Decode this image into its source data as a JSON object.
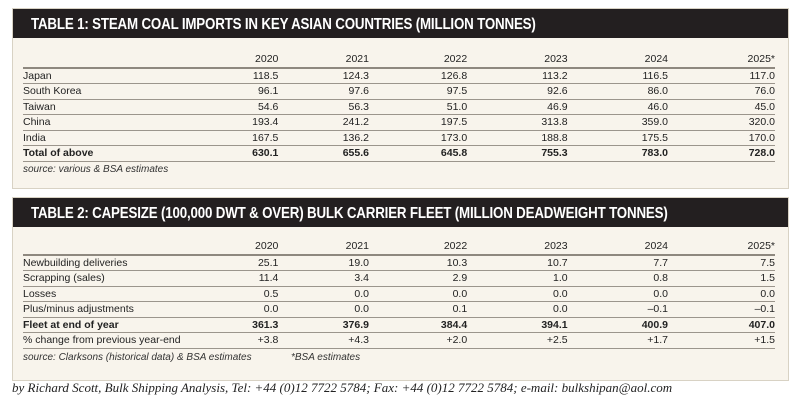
{
  "table1": {
    "title": "TABLE 1: STEAM COAL IMPORTS IN KEY ASIAN COUNTRIES (MILLION TONNES)",
    "columns": [
      "",
      "2020",
      "2021",
      "2022",
      "2023",
      "2024",
      "2025*"
    ],
    "rows": [
      [
        "Japan",
        "118.5",
        "124.3",
        "126.8",
        "113.2",
        "116.5",
        "117.0"
      ],
      [
        "South Korea",
        "96.1",
        "97.6",
        "97.5",
        "92.6",
        "86.0",
        "76.0"
      ],
      [
        "Taiwan",
        "54.6",
        "56.3",
        "51.0",
        "46.9",
        "46.0",
        "45.0"
      ],
      [
        "China",
        "193.4",
        "241.2",
        "197.5",
        "313.8",
        "359.0",
        "320.0"
      ],
      [
        "India",
        "167.5",
        "136.2",
        "173.0",
        "188.8",
        "175.5",
        "170.0"
      ],
      [
        "Total of above",
        "630.1",
        "655.6",
        "645.8",
        "755.3",
        "783.0",
        "728.0"
      ]
    ],
    "source": "source: various & BSA estimates"
  },
  "table2": {
    "title": "TABLE 2: CAPESIZE  (100,000 DWT & OVER) BULK CARRIER FLEET (MILLION DEADWEIGHT TONNES)",
    "columns": [
      "",
      "2020",
      "2021",
      "2022",
      "2023",
      "2024",
      "2025*"
    ],
    "rows": [
      [
        "Newbuilding deliveries",
        "25.1",
        "19.0",
        "10.3",
        "10.7",
        "7.7",
        "7.5"
      ],
      [
        "Scrapping (sales)",
        "11.4",
        "3.4",
        "2.9",
        "1.0",
        "0.8",
        "1.5"
      ],
      [
        "Losses",
        "0.5",
        "0.0",
        "0.0",
        "0.0",
        "0.0",
        "0.0"
      ],
      [
        "Plus/minus adjustments",
        "0.0",
        "0.0",
        "0.1",
        "0.0",
        "–0.1",
        "–0.1"
      ],
      [
        "Fleet at end of year",
        "361.3",
        "376.9",
        "384.4",
        "394.1",
        "400.9",
        "407.0"
      ],
      [
        "% change from previous year-end",
        "+3.8",
        "+4.3",
        "+2.0",
        "+2.5",
        "+1.7",
        "+1.5"
      ]
    ],
    "source": "source: Clarksons (historical data) & BSA estimates",
    "note": "*BSA estimates"
  },
  "footer": "by Richard Scott, Bulk Shipping Analysis, Tel: +44 (0)12 7722 5784; Fax: +44 (0)12 7722 5784; e-mail: bulkshipan@aol.com"
}
